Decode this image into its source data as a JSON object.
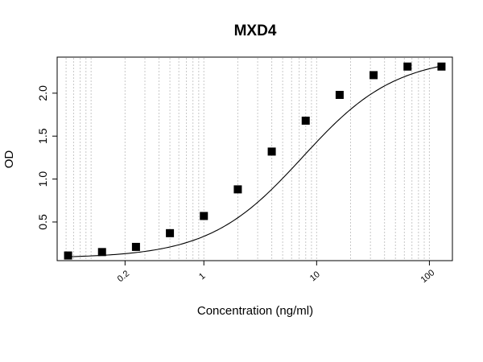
{
  "chart_data": {
    "type": "scatter",
    "title": "MXD4",
    "xlabel": "Concentration (ng/ml)",
    "ylabel": "OD",
    "x_scale": "log",
    "xlim": [
      0.05,
      160
    ],
    "ylim": [
      0.05,
      2.42
    ],
    "grid": "vertical-dotted",
    "x_ticks": [
      {
        "value": 0.2,
        "label": "0.2"
      },
      {
        "value": 1,
        "label": "1"
      },
      {
        "value": 10,
        "label": "10"
      },
      {
        "value": 100,
        "label": "100"
      }
    ],
    "y_ticks": [
      {
        "value": 0.5,
        "label": "0.5"
      },
      {
        "value": 1.0,
        "label": "1.0"
      },
      {
        "value": 1.5,
        "label": "1.5"
      },
      {
        "value": 2.0,
        "label": "2.0"
      }
    ],
    "series": [
      {
        "marker": "square",
        "color": "#000000",
        "x": [
          0.0625,
          0.125,
          0.25,
          0.5,
          1,
          2,
          4,
          8,
          16,
          32,
          64,
          128
        ],
        "y": [
          0.11,
          0.15,
          0.21,
          0.37,
          0.57,
          0.88,
          1.32,
          1.68,
          1.98,
          2.21,
          2.31,
          2.31
        ]
      }
    ],
    "fit_curve": {
      "type": "4PL",
      "color": "#000000",
      "bottom": 0.08,
      "top": 2.43,
      "ec50": 7.5,
      "hill": 1.05
    }
  }
}
